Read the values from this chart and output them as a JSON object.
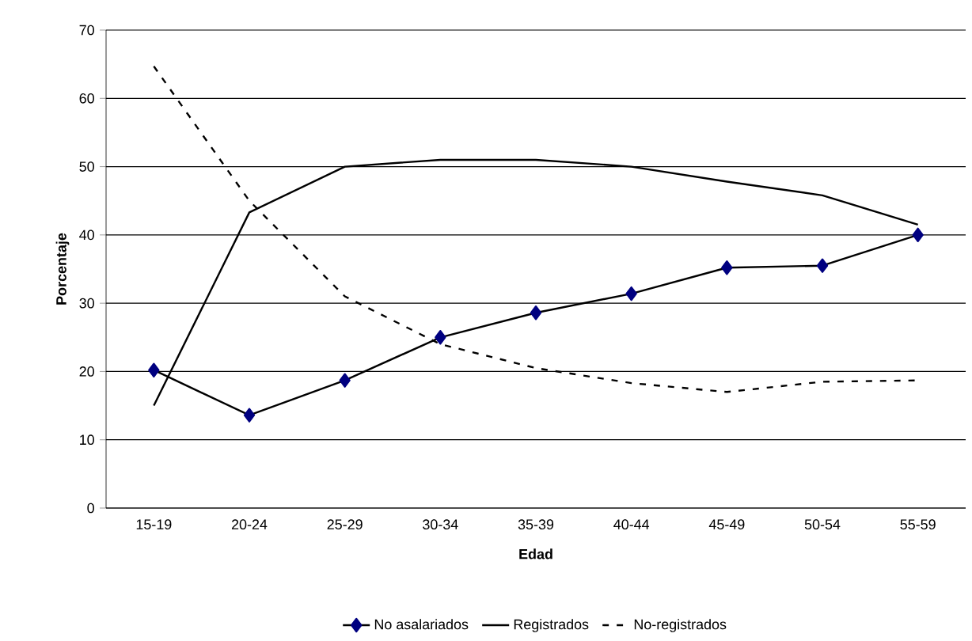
{
  "chart_data": {
    "type": "line",
    "xlabel": "Edad",
    "ylabel": "Porcentaje",
    "categories": [
      "15-19",
      "20-24",
      "25-29",
      "30-34",
      "35-39",
      "40-44",
      "45-49",
      "50-54",
      "55-59"
    ],
    "series": [
      {
        "name": "No asalariados",
        "color": "#000080",
        "marker": "diamond",
        "line_style": "solid",
        "values": [
          20.2,
          13.6,
          18.7,
          25,
          28.6,
          31.4,
          35.2,
          35.5,
          40
        ]
      },
      {
        "name": "Registrados",
        "color": "#000000",
        "marker": "none",
        "line_style": "solid",
        "values": [
          15,
          43.3,
          50,
          51,
          51,
          50,
          47.8,
          45.8,
          41.5
        ]
      },
      {
        "name": "No-registrados",
        "color": "#000000",
        "marker": "none",
        "line_style": "dashed",
        "values": [
          64.7,
          45,
          31,
          24,
          20.5,
          18.3,
          17,
          18.5,
          18.7
        ]
      }
    ],
    "ylim": [
      0,
      70
    ],
    "yticks": [
      0,
      10,
      20,
      30,
      40,
      50,
      60,
      70
    ],
    "grid": "y",
    "legend": "bottom"
  }
}
